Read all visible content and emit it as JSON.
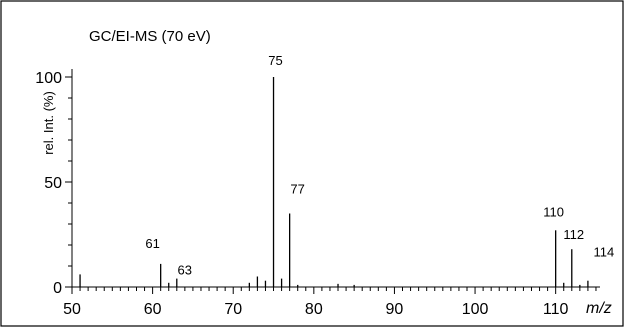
{
  "chart_data": {
    "type": "bar",
    "title": "GC/EI-MS (70 eV)",
    "xlabel": "m/z",
    "ylabel": "rel. Int. (%)",
    "xlim": [
      50,
      117
    ],
    "ylim": [
      0,
      100
    ],
    "x_ticks": [
      50,
      60,
      70,
      80,
      90,
      100,
      110
    ],
    "y_ticks": [
      0,
      50,
      100
    ],
    "peaks": [
      {
        "mz": 51,
        "intensity": 6
      },
      {
        "mz": 61,
        "intensity": 11,
        "label": "61"
      },
      {
        "mz": 62,
        "intensity": 2
      },
      {
        "mz": 63,
        "intensity": 4,
        "label": "63"
      },
      {
        "mz": 72,
        "intensity": 2
      },
      {
        "mz": 73,
        "intensity": 5
      },
      {
        "mz": 74,
        "intensity": 3
      },
      {
        "mz": 75,
        "intensity": 100,
        "label": "75"
      },
      {
        "mz": 76,
        "intensity": 4
      },
      {
        "mz": 77,
        "intensity": 35,
        "label": "77"
      },
      {
        "mz": 78,
        "intensity": 1
      },
      {
        "mz": 83,
        "intensity": 1.5
      },
      {
        "mz": 85,
        "intensity": 1
      },
      {
        "mz": 110,
        "intensity": 27,
        "label": "110"
      },
      {
        "mz": 111,
        "intensity": 2
      },
      {
        "mz": 112,
        "intensity": 18,
        "label": "112"
      },
      {
        "mz": 113,
        "intensity": 1
      },
      {
        "mz": 114,
        "intensity": 3,
        "label": "114"
      }
    ]
  }
}
